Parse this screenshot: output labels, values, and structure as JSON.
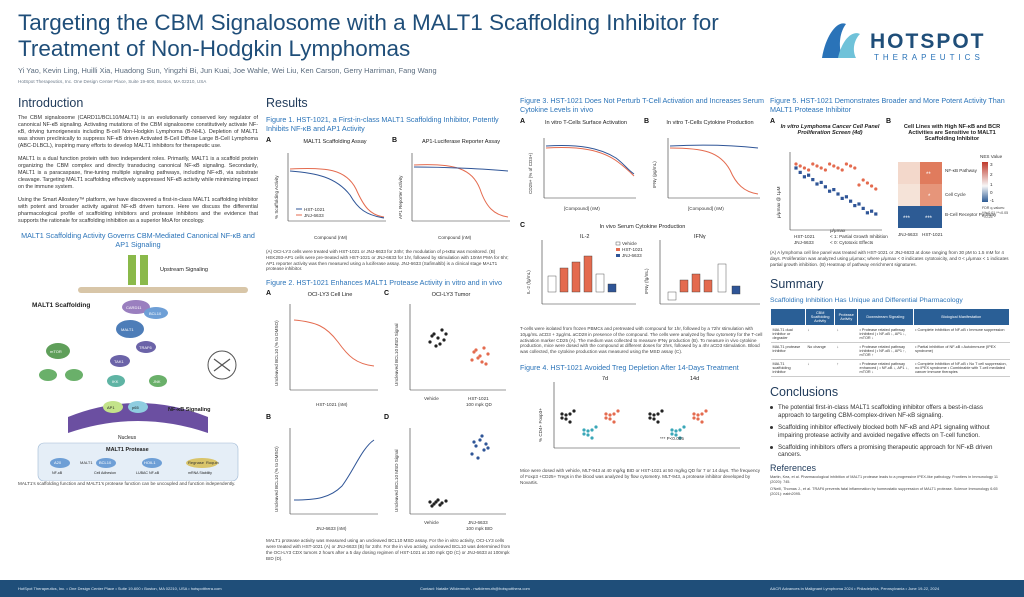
{
  "header": {
    "title": "Targeting the CBM Signalosome with a MALT1 Scaffolding Inhibitor for Treatment of Non-Hodgkin Lymphomas",
    "authors": "Yi Yao, Kevin Ling, Huilli Xia, Huadong Sun, Yingzhi Bi, Jun Kuai, Joe Wahle, Wei Liu, Ken Carson, Gerry Harriman, Fang Wang",
    "affiliation": "HotSpot Therapeutics, Inc.  One Design Center Place, Suite 19-600, Boston, MA 02210, USA",
    "logo_word": "HOTSPOT",
    "logo_sub": "THERAPEUTICS"
  },
  "intro": {
    "heading": "Introduction",
    "p1": "The CBM signalosome (CARD11/BCL10/MALT1) is an evolutionarily conserved key regulator of canonical NF-κB signaling. Activating mutations of the CBM signalosome constitutively activate NF-κB, driving tumorigenesis including B-cell Non-Hodgkin Lymphoma (B-NHL). Depletion of MALT1 was shown preclinically to suppress NF-κB driven Activated B-Cell Diffuse Large B-Cell Lymphoma (ABC-DLBCL), inspiring many efforts to develop MALT1 inhibitors for therapeutic use.",
    "p2": "MALT1 is a dual function protein with two independent roles. Primarily, MALT1 is a scaffold protein organizing the CBM complex and directly transducing canonical NF-κB signaling. Secondarily, MALT1 is a paracaspase, fine-tuning multiple signaling pathways, including NF-κB, via substrate cleavage. Targeting MALT1 scaffolding effectively suppressed NF-κB activity while minimizing impact on the immune system.",
    "p3": "Using the Smart Allostery™ platform, we have discovered a first-in-class MALT1 scaffolding inhibitor with potent and broader activity against NF-κB driven tumors. Here we discuss the differential pharmacological profile of scaffolding inhibitors and protease inhibitors and the evidence that supports the rationale for scaffolding inhibition as a superior MoA for oncology.",
    "diagram_title": "MALT1 Scaffolding Activity Governs CBM-Mediated Canonical NF-κB and AP1 Signaling",
    "caption": "MALT1's scaffolding function and MALT1's protease function can be uncoupled and function independently.",
    "labels": {
      "upstream": "Upstream Signaling",
      "scaffolding": "MALT1 Scaffolding",
      "nfkb": "NF-κB Signaling",
      "nucleus": "Nucleus",
      "protease": "MALT1 Protease",
      "card11": "CARD11",
      "bcl10": "BCL10",
      "malt1": "MALT1",
      "traf6": "TRAF6",
      "tak1": "TAK1",
      "ikk": "IKK",
      "ap1": "AP1",
      "mtor": "mTOR",
      "jnk": "JNK",
      "nfkb_short": "NF-κB",
      "p65": "p65"
    },
    "substrates": [
      "A20",
      "MALT1",
      "BCL10",
      "HOIL1",
      "Regnase",
      "Roquin"
    ],
    "substrate_labels": [
      "NF-κB",
      "Cell Adhesion",
      "LUBAC NF-κB",
      "mRNA Stability"
    ]
  },
  "results": {
    "heading": "Results",
    "fig1_title": "Figure 1. HST-1021, a First-in-class MALT1 Scaffolding Inhibitor, Potently Inhibits NF-κB and AP1 Activity",
    "fig1_a_title": "MALT1 Scaffolding Assay",
    "fig1_b_title": "AP1-Luciferase Reporter Assay",
    "fig1_ylabel_a": "% Scaffolding Activity",
    "fig1_ylabel_b": "AP1 Reporter Activity",
    "fig1_xlabel": "Compound (nM)",
    "fig1_caption": "(A) OCI-LY3 cells were treated with HST-1021 or JNJ-6633 for 24hr; the modulation of p-IκBα was monitored. (B) HEK293-AP1 cells were pre-treated with HST-1021 or JNJ-6633 for 1hr, followed by stimulation with 10nM PMA for 6hr; AP1 reporter activity was then measured using a luciferase assay. JNJ-6633 (Safimaltib) is a clinical stage MALT1 protease inhibitor.",
    "fig2_title": "Figure 2. HST-1021 Enhances MALT1 Protease Activity in vitro and in vivo",
    "fig2_a_title": "OCI-LY3 Cell Line",
    "fig2_c_title": "OCI-LY3 Tumor",
    "fig2_ylabel": "Uncleaved BCL10 (% to DMSO)",
    "fig2_ylabel_c": "Uncleaved BCL10 MSD Signal",
    "fig2_xlabel_a": "HST-1021 (nM)",
    "fig2_xlabel_b": "JNJ-6633 (nM)",
    "fig2_c_cats": [
      "Vehicle",
      "HST-1021"
    ],
    "fig2_c_sub": "100 mpk QD",
    "fig2_d_cats": [
      "Vehicle",
      "JNJ-6633"
    ],
    "fig2_d_sub": "100 mpk BID",
    "fig2_caption": "MALT1 protease activity was measured using an uncleaved BCL10 MSD assay. For the in vitro activity, OCI-LY3 cells were treated with HST-1021 (A) or JNJ-6633 (B) for 24hr. For the in vivo activity, uncleaved BCL10 was determined from the OCI-LY3 CDX tumors 2 hours after a 5 day dosing regimen of HST-1021 at 100 mpk QD (C) or JNJ-6633 at 100mpk BID (D).",
    "legend": [
      "HST-1021",
      "JNJ-6633"
    ]
  },
  "fig3": {
    "title": "Figure 3. HST-1021 Does Not Perturb T-Cell Activation and Increases Serum Cytokine Levels in vivo",
    "a_title": "In vitro T-Cells Surface Activation",
    "b_title": "In vitro T-Cells Cytokine Production",
    "a_ylabel": "CD25+ (% of CD3+)",
    "b_ylabel": "IFNγ (pg/mL)",
    "xlabel": "[Compound] (nM)",
    "c_title": "In vivo Serum Cytokine Production",
    "c_il2": "IL-2",
    "c_ifn": "IFNγ",
    "c_ylabel_il2": "IL-2 (fg/mL)",
    "c_ylabel_ifn": "IFNγ (fg/mL)",
    "c_legend": [
      "Vehicle",
      "HST-1021",
      "JNJ-6633"
    ],
    "caption": "T-cells were isolated from frozen PBMCs and pretreated with compound for 1hr, followed by a 72hr stimulation with 10μg/mL aCD3 + 3μg/mL aCD28 in presence of the compound. The cells were analyzed by flow cytometry for the T-cell activation marker CD25 (A). The medium was collected to measure IFNγ production (B). To measure in vivo cytokine production, mice were dosed with the compound at different doses for 2hrs, followed by a 4hr aCD3 stimulation. Blood was collected, the cytokine production was measured using the MSD assay (C)."
  },
  "fig4": {
    "title": "Figure 4. HST-1021 Avoided Treg Depletion After 14-Days Treatment",
    "ylabel": "% CD4+ Foxp3+",
    "days": [
      "7d",
      "14d"
    ],
    "cats": [
      "Vehicle",
      "MLT-943",
      "HST-1021"
    ],
    "note": "*** P<0.005",
    "caption": "Mice were dosed with vehicle, MLT-943 at 40 mg/kg BID or HST-1021 at 50 mg/kg QD for 7 or 14 days. The frequency of Foxp3 +CD25+ Tregs in the blood was analyzed by flow cytometry. MLT-943, a protease inhibitor developed by Novartis."
  },
  "fig5": {
    "title": "Figure 5. HST-1021 Demonstrates Broader and More Potent Activity Than MALT1 Protease Inhibitor",
    "a_title": "In vitro Lymphoma Cancer Cell Panel Proliferation Screen (4d)",
    "b_title": "Cell Lines with High NF-κB and BCR Activities are Sensitive to MALT1 Scaffolding Inhibitor",
    "a_ylabel": "μ/μmax @ 1μM",
    "a_legend": [
      "HST-1021",
      "JNJ-6633"
    ],
    "a_notes": [
      "μ/μmax",
      "< 1: Partial Growth Inhibition",
      "< 0: Cytotoxic Effects"
    ],
    "heat_rows": [
      "NF-κB Pathway",
      "Cell Cycle",
      "B-Cell Receptor Pathway"
    ],
    "heat_cols": [
      "JNJ-6633",
      "HST-1021"
    ],
    "heat_marks": [
      [
        "",
        "**"
      ],
      [
        "",
        "*"
      ],
      [
        "***",
        "***"
      ]
    ],
    "nes_title": "NES Value",
    "nes_ticks": [
      "3",
      "2",
      "1",
      "0",
      "-1"
    ],
    "fdr": "FDR q-values: ***<0.01 **<0.05 *<0.25",
    "caption": "(A) A lymphoma cell line panel was treated with HST-1021 or JNJ-6633 at dose ranging from 30 pM to 1.5 mM for 4 days. Proliferation was analyzed using μ/μmax; where μ/μmax < 0 indicates cytotoxicity, and 0 < μ/μmax < 1 indicates partial growth inhibition. (B) Heatmap of pathway enrichment signatures."
  },
  "summary": {
    "heading": "Summary",
    "subheading": "Scaffolding Inhibition Has Unique and Differential Pharmacology",
    "cols": [
      "CBM Scaffolding Activity",
      "Protease Activity",
      "Downstream Signaling",
      "Biological Manifestation"
    ],
    "rows": [
      {
        "name": "MALT1 dual inhibitor or degrader",
        "scaf": "↓",
        "prot": "↓",
        "signal": "• Protease related pathway inhibited | • NF-κB ↓, AP1 ↓, mTOR ↓",
        "bio": "• Complete inhibition of NF-κB • Immune suppression"
      },
      {
        "name": "MALT1 protease inhibitor",
        "scaf": "No change",
        "prot": "↓",
        "signal": "• Protease related pathway inhibited | • NF-κB ↓, AP1 ↑, mTOR ↑",
        "bio": "• Partial inhibition of NF-κB • Autoimmune (IPEX syndrome)"
      },
      {
        "name": "MALT1 scaffolding inhibitor",
        "scaf": "↓",
        "prot": "↑",
        "signal": "• Protease related pathway enhanced | • NF-κB ↓, AP1 ↓, mTOR ↓",
        "bio": "• Complete inhibition of NF-κB • No T cell suppression, no IPEX syndrome • Combinable with T-cell mediated cancer immune therapies"
      }
    ]
  },
  "conclusions": {
    "heading": "Conclusions",
    "items": [
      "The potential first-in-class MALT1 scaffolding inhibitor offers a best-in-class approach to targeting CBM-complex-driven NF-κB signaling.",
      "Scaffolding inhibitor effectively blocked both NF-κB and AP1 signaling without impairing protease activity and avoided negative effects on T-cell function.",
      "Scaffolding inhibitors offers a promising therapeutic approach for NF-κB driven cancers."
    ]
  },
  "references": {
    "heading": "References",
    "r1": "Martin, Kea, et al. Pharmacological inhibition of MALT1 protease leads to a progressive IPEX-like pathology. Frontiers in Immunology 11 (2020): 745.",
    "r2": "O'Neill, Thomas J., et al. TRAF6 prevents fatal inflammation by homeostatic suppression of MALT1 protease. Science Immunology 6.65 (2021): eabh2095."
  },
  "footer": {
    "left": "HotSpot Therapeutics, Inc. • One Design Center Place • Suite 19-600 • Boston, MA 02210, USA • hotspotthera.com",
    "middle": "Contact: Natalie Wildermuth - nwildermuth@hotspotthera.com",
    "right": "AACR Advances in Malignant Lymphoma 2024 • Philadelphia, Pennsylvania • June 19-22, 2024"
  },
  "colors": {
    "title": "#1f4e79",
    "accent": "#2a73b8",
    "hst": "#2f5597",
    "jnj": "#e46b4f",
    "footer": "#1f4e79"
  }
}
